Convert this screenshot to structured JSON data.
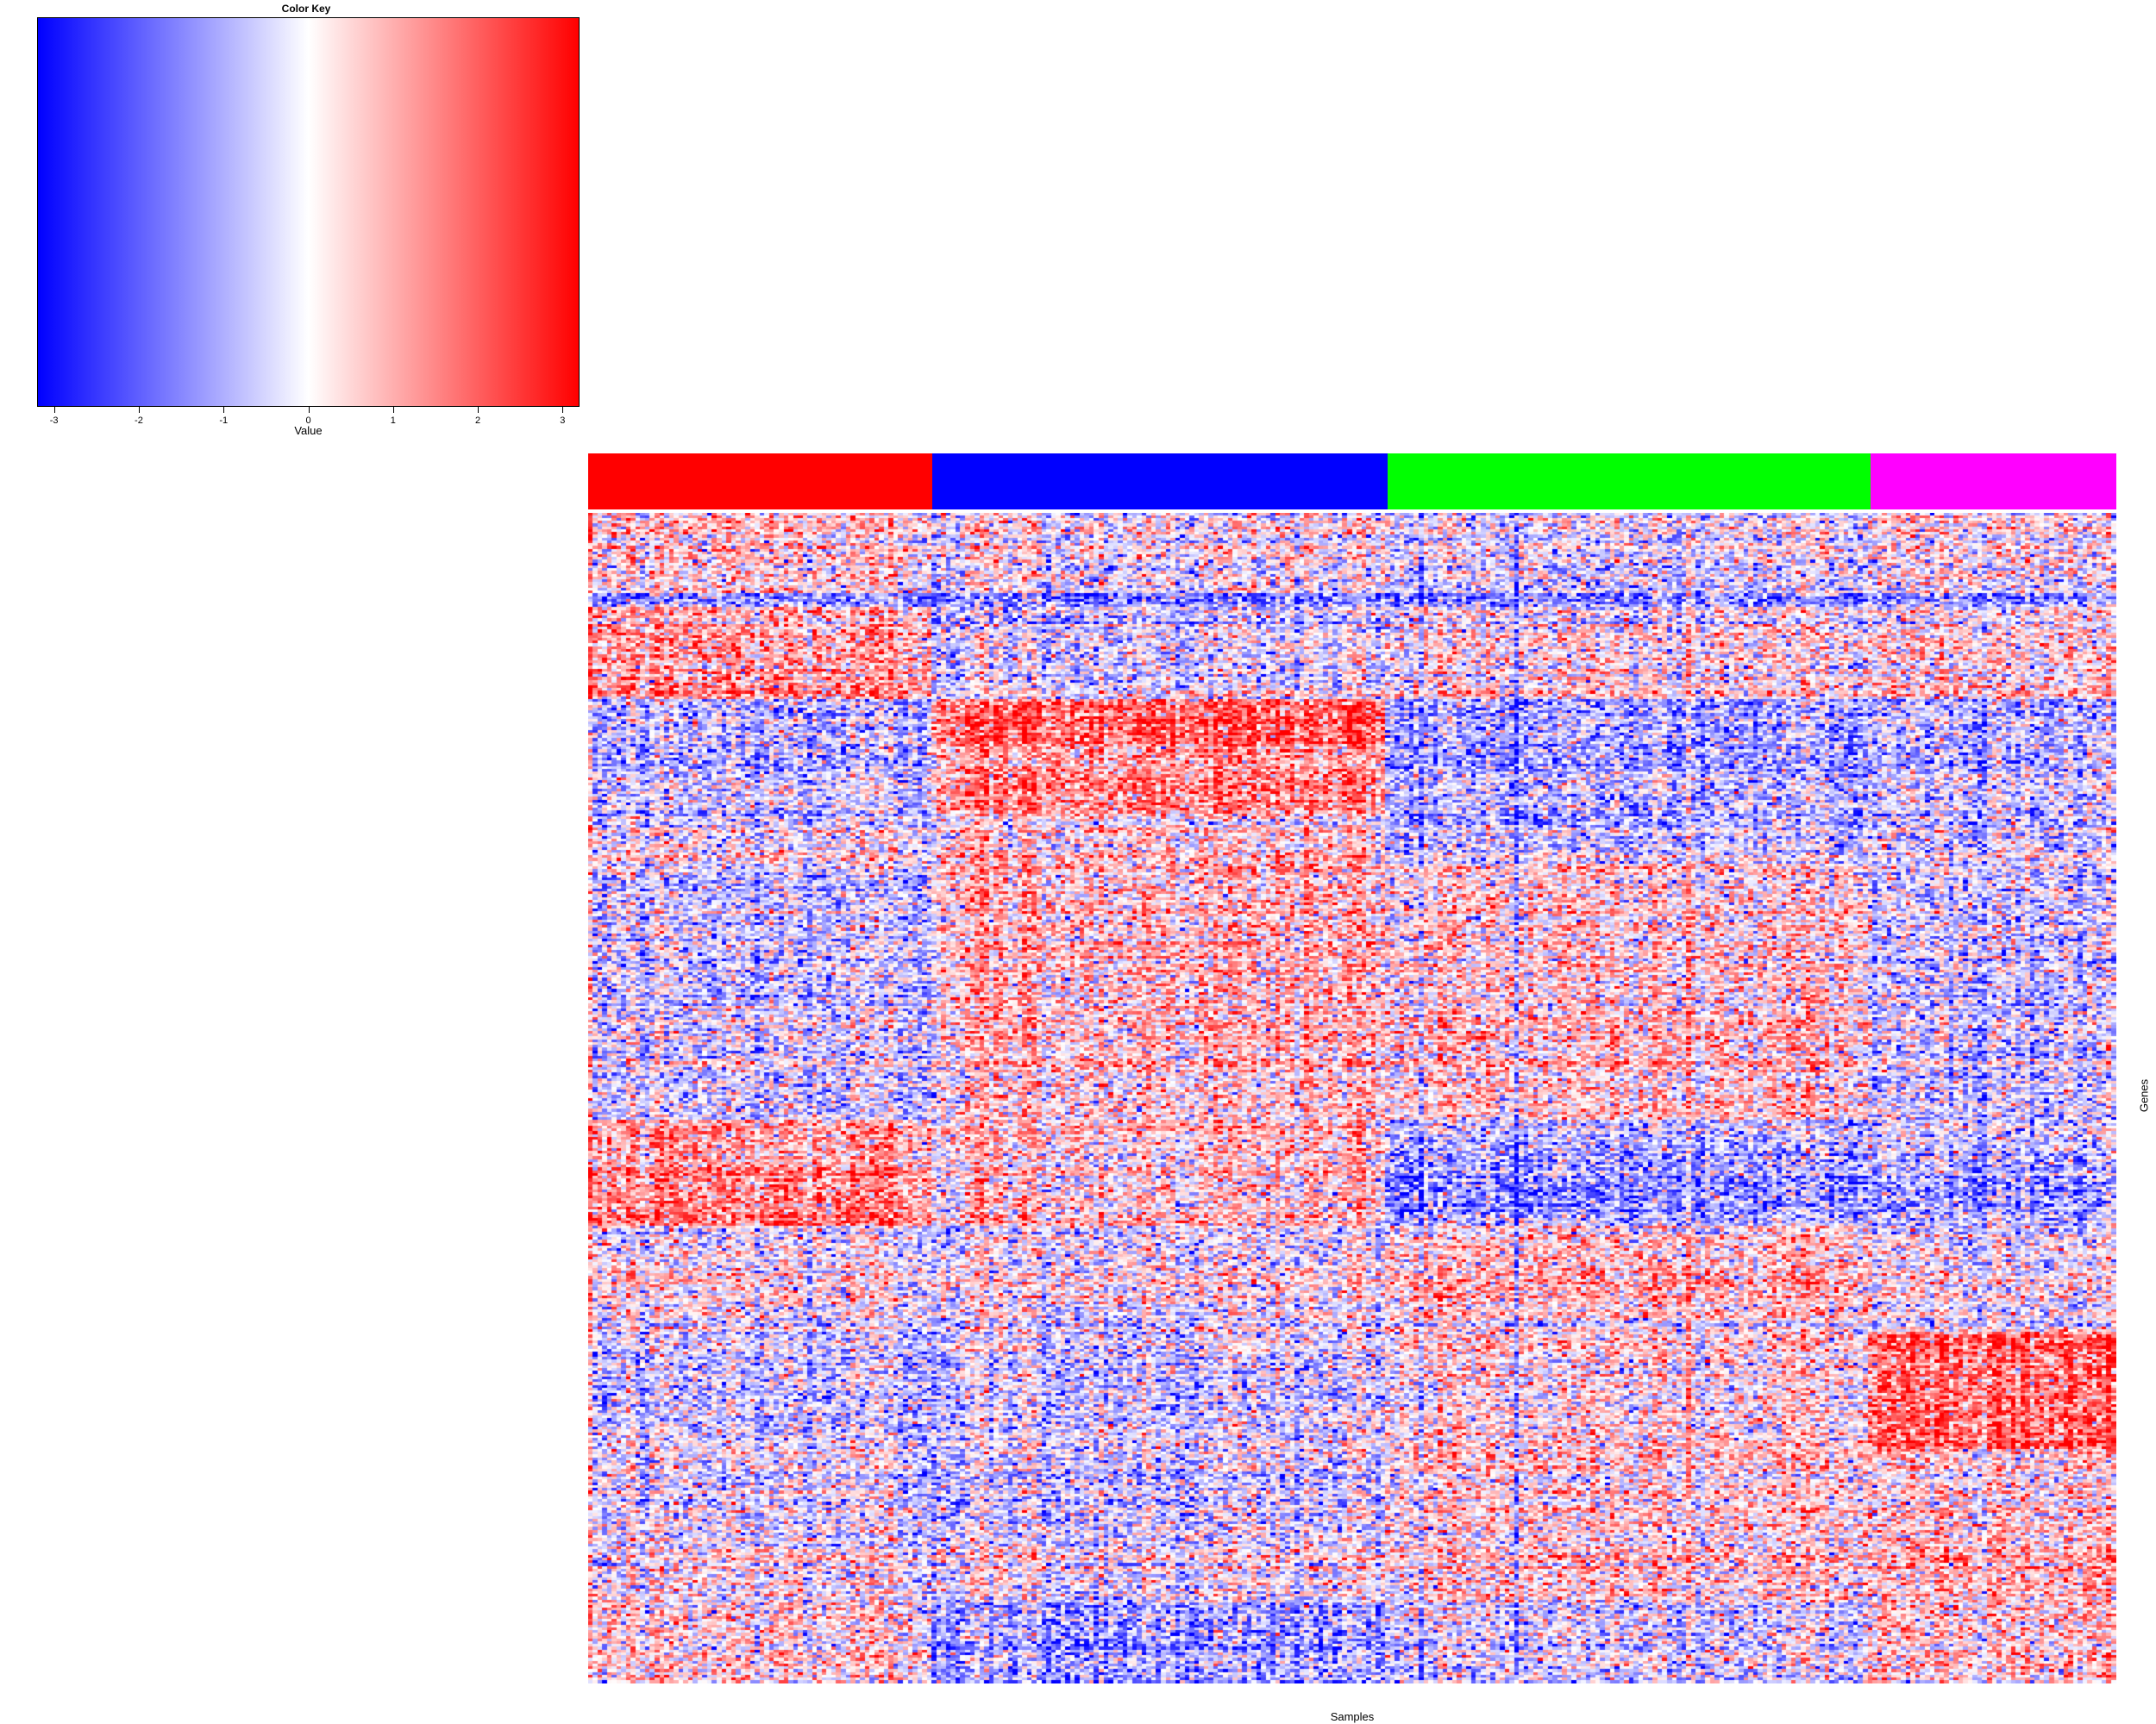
{
  "chart_data": {
    "type": "heatmap",
    "xlabel": "Samples",
    "ylabel": "Genes",
    "color_key": {
      "title": "Color Key",
      "xlabel": "Value",
      "range": [
        -3.2,
        3.2
      ],
      "ticks": [
        -3,
        -2,
        -1,
        0,
        1,
        2,
        3
      ],
      "tick_labels": [
        "-3",
        "-2",
        "-1",
        "0",
        "1",
        "2",
        "3"
      ],
      "low_color": "#0000ff",
      "mid_color": "#ffffff",
      "high_color": "#ff0000"
    },
    "sample_groups": [
      {
        "color": "#ff0000",
        "fraction": 0.225
      },
      {
        "color": "#0000ff",
        "fraction": 0.298
      },
      {
        "color": "#00ff00",
        "fraction": 0.316
      },
      {
        "color": "#ff00ff",
        "fraction": 0.161
      }
    ],
    "n_columns": 320,
    "n_rows": 420,
    "gene_blocks": [
      {
        "row_span": [
          0.0,
          0.07
        ],
        "means": [
          0.4,
          0.0,
          -0.3,
          0.2
        ]
      },
      {
        "row_span": [
          0.07,
          0.08
        ],
        "means": [
          -1.5,
          -1.6,
          -1.6,
          -1.4
        ]
      },
      {
        "row_span": [
          0.08,
          0.16
        ],
        "means": [
          1.2,
          -0.2,
          0.3,
          0.5
        ]
      },
      {
        "row_span": [
          0.16,
          0.2
        ],
        "means": [
          -0.8,
          2.0,
          -1.2,
          -0.8
        ]
      },
      {
        "row_span": [
          0.2,
          0.26
        ],
        "means": [
          -0.8,
          1.3,
          -1.0,
          -0.6
        ]
      },
      {
        "row_span": [
          0.26,
          0.3
        ],
        "means": [
          0.0,
          0.5,
          -0.6,
          -0.3
        ]
      },
      {
        "row_span": [
          0.3,
          0.43
        ],
        "means": [
          -0.6,
          0.7,
          0.4,
          -0.5
        ]
      },
      {
        "row_span": [
          0.43,
          0.52
        ],
        "means": [
          -0.5,
          0.5,
          0.5,
          -0.6
        ]
      },
      {
        "row_span": [
          0.52,
          0.56
        ],
        "means": [
          1.0,
          0.6,
          -0.9,
          -0.6
        ]
      },
      {
        "row_span": [
          0.56,
          0.61
        ],
        "means": [
          1.6,
          0.7,
          -1.2,
          -0.9
        ]
      },
      {
        "row_span": [
          0.61,
          0.69
        ],
        "means": [
          0.0,
          0.0,
          0.6,
          0.0
        ]
      },
      {
        "row_span": [
          0.69,
          0.7
        ],
        "means": [
          0.0,
          0.0,
          0.0,
          0.0
        ]
      },
      {
        "row_span": [
          0.7,
          0.8
        ],
        "means": [
          -0.5,
          -0.4,
          0.3,
          2.0
        ]
      },
      {
        "row_span": [
          0.8,
          0.87
        ],
        "means": [
          -0.2,
          -0.4,
          0.5,
          0.6
        ]
      },
      {
        "row_span": [
          0.87,
          0.93
        ],
        "means": [
          -0.1,
          -0.1,
          0.4,
          0.8
        ]
      },
      {
        "row_span": [
          0.93,
          1.0
        ],
        "means": [
          0.3,
          -1.1,
          -0.4,
          0.6
        ]
      }
    ]
  }
}
